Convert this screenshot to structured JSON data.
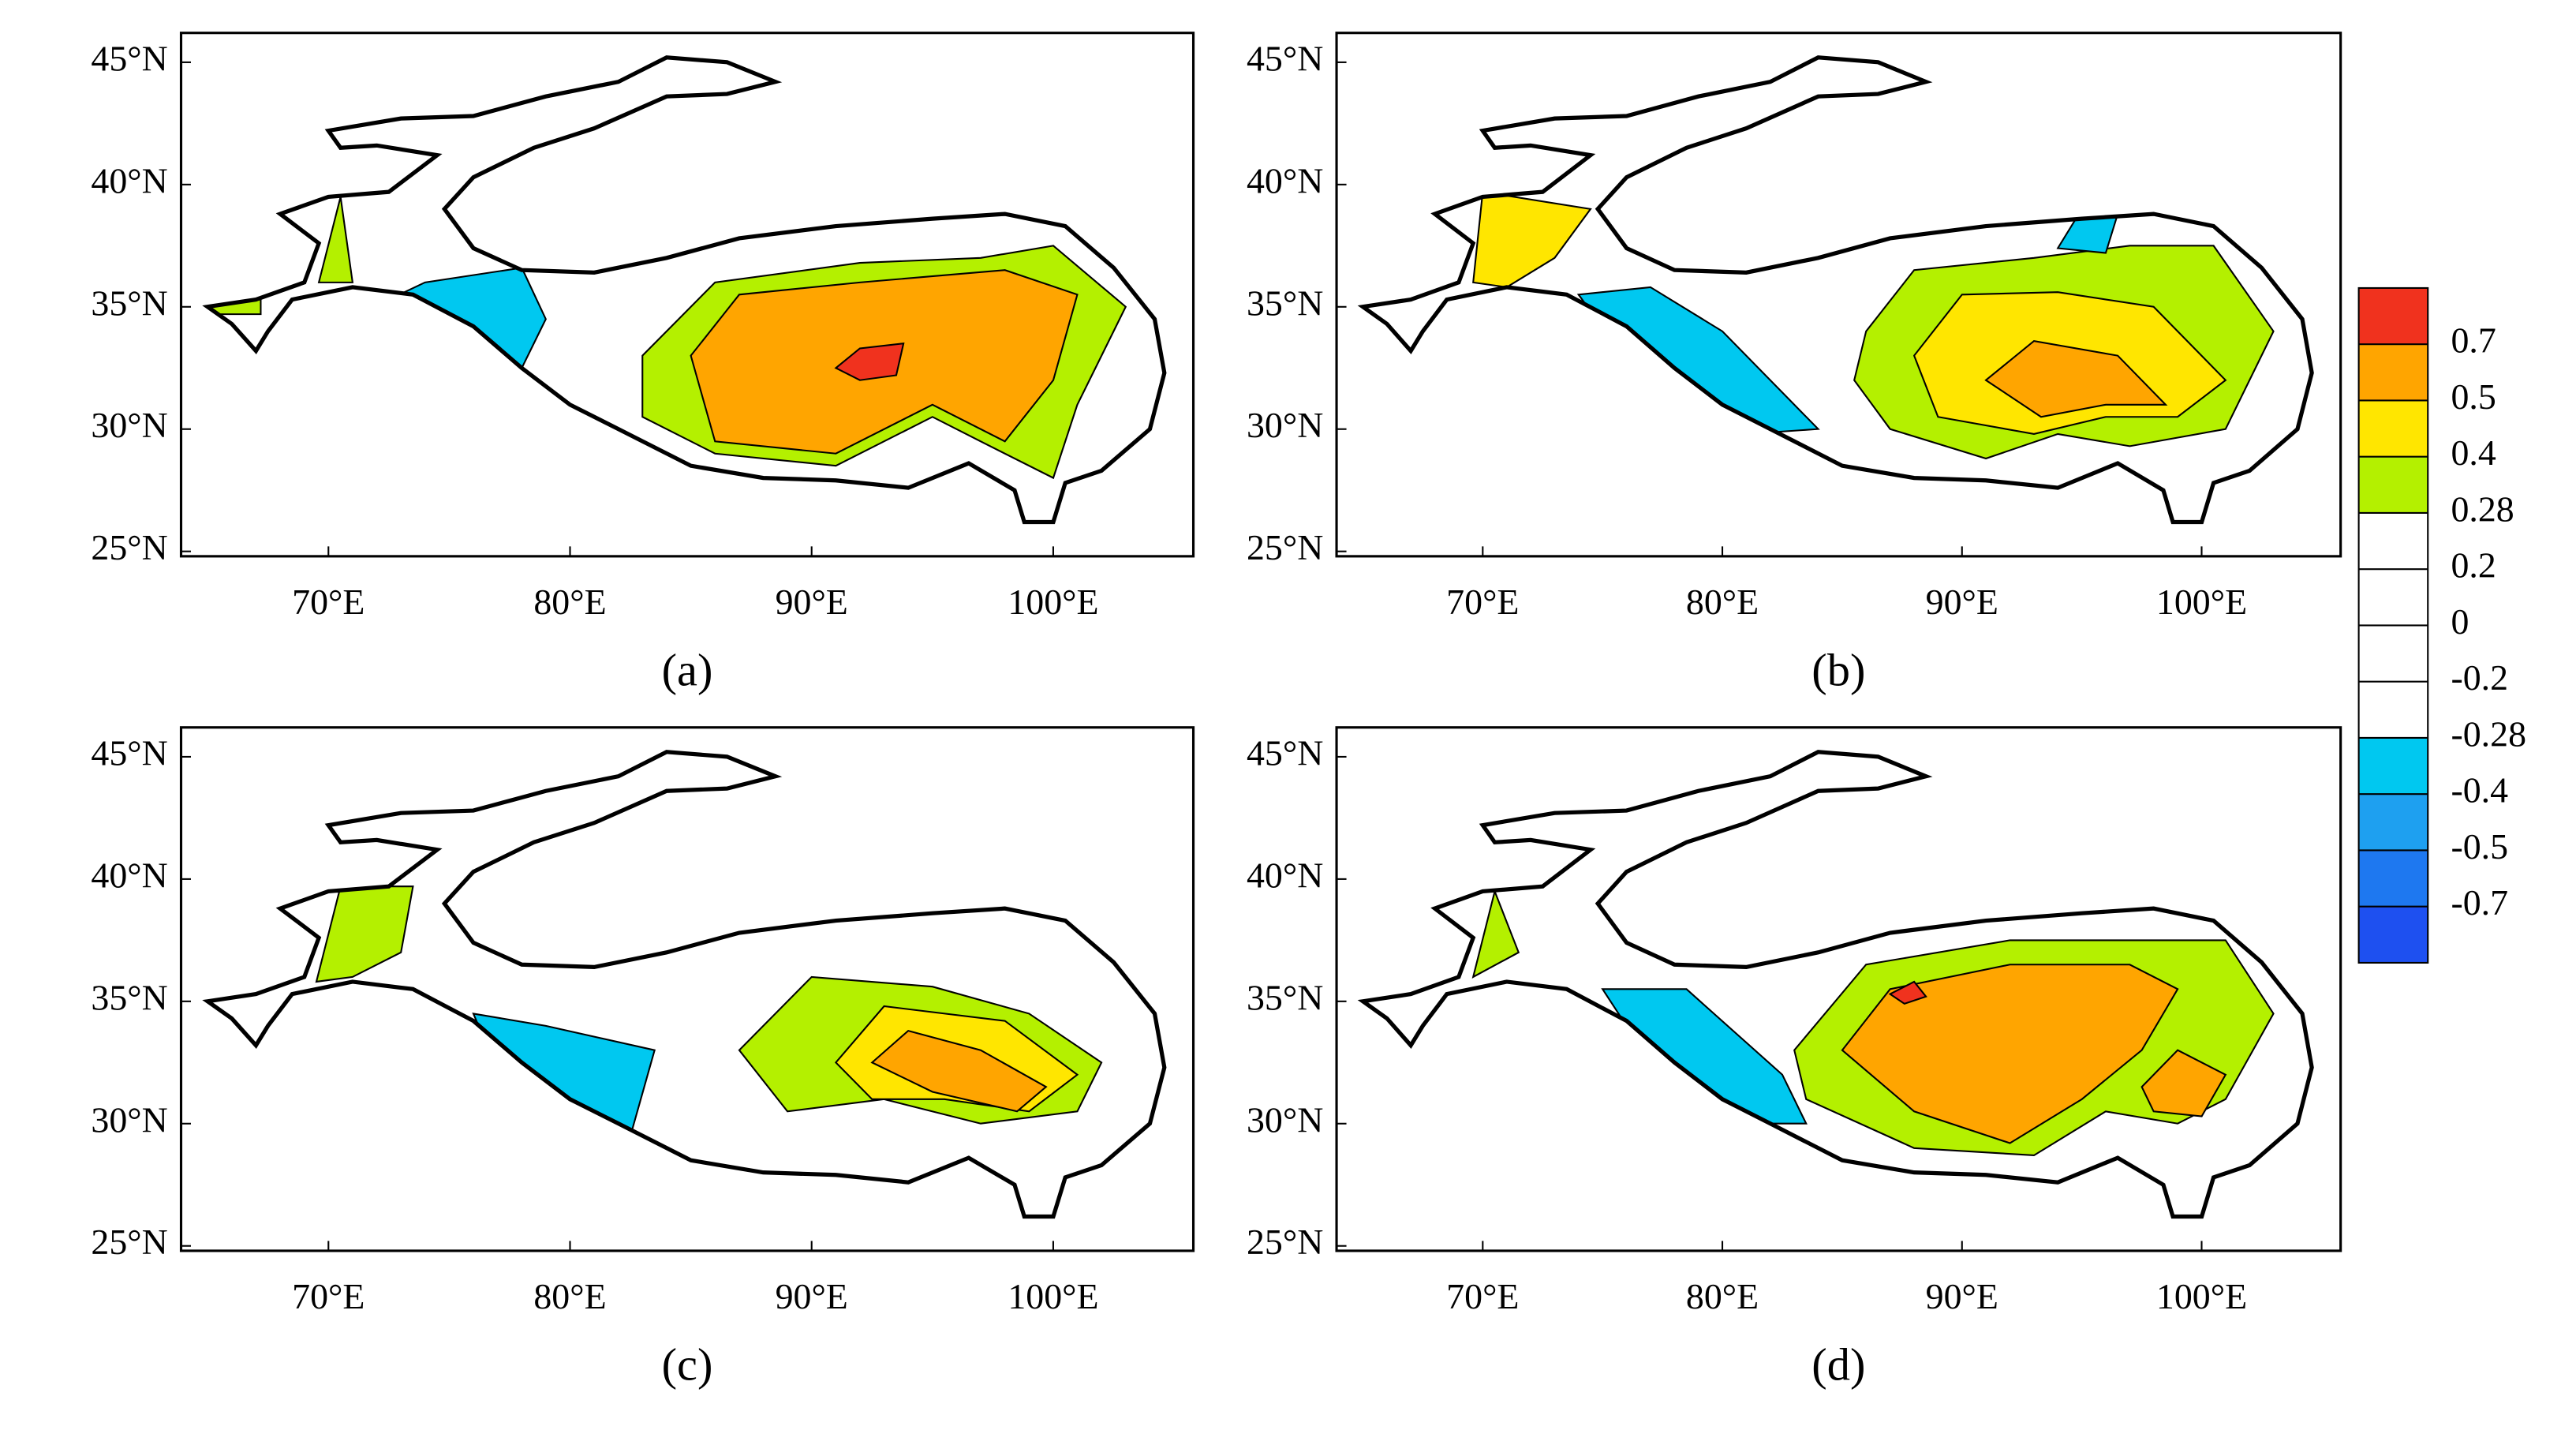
{
  "axes": {
    "xlim": [
      63.9,
      105.8
    ],
    "ylim": [
      24.8,
      46.2
    ],
    "xticks": [
      {
        "value": 70,
        "label": "70°E"
      },
      {
        "value": 80,
        "label": "80°E"
      },
      {
        "value": 90,
        "label": "90°E"
      },
      {
        "value": 100,
        "label": "100°E"
      }
    ],
    "yticks": [
      {
        "value": 25,
        "label": "25°N"
      },
      {
        "value": 30,
        "label": "30°N"
      },
      {
        "value": 35,
        "label": "35°N"
      },
      {
        "value": 40,
        "label": "40°N"
      },
      {
        "value": 45,
        "label": "45°N"
      }
    ]
  },
  "panels": [
    {
      "label": "(a)"
    },
    {
      "label": "(b)"
    },
    {
      "label": "(c)"
    },
    {
      "label": "(d)"
    }
  ],
  "colorbar": {
    "levels": [
      0.7,
      0.5,
      0.4,
      0.28,
      0.2,
      0,
      -0.2,
      -0.28,
      -0.4,
      -0.5,
      -0.7
    ],
    "colors": [
      "#f0321e",
      "#ffa500",
      "#ffe600",
      "#b4f000",
      "#ffffff",
      "#ffffff",
      "#ffffff",
      "#ffffff",
      "#00c8f0",
      "#1ea0f0",
      "#1e78f0",
      "#1e50f0"
    ]
  }
}
